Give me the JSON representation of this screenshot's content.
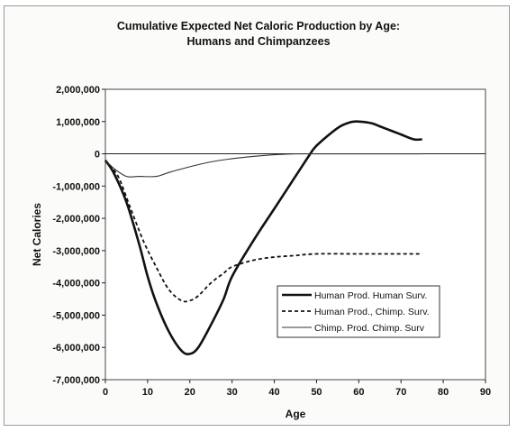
{
  "chart_data": {
    "type": "line",
    "title": "Cumulative Expected Net Caloric Production by Age:",
    "subtitle": "Humans and Chimpanzees",
    "xlabel": "Age",
    "ylabel": "Net Calories",
    "xlim": [
      0,
      90
    ],
    "ylim": [
      -7000000,
      2000000
    ],
    "x_ticks": [
      0,
      10,
      20,
      30,
      40,
      50,
      60,
      70,
      80,
      90
    ],
    "y_ticks": [
      -7000000,
      -6000000,
      -5000000,
      -4000000,
      -3000000,
      -2000000,
      -1000000,
      0,
      1000000,
      2000000
    ],
    "x_tick_labels": [
      "0",
      "10",
      "20",
      "30",
      "40",
      "50",
      "60",
      "70",
      "80",
      "90"
    ],
    "y_tick_labels": [
      "-7,000,000",
      "-6,000,000",
      "-5,000,000",
      "-4,000,000",
      "-3,000,000",
      "-2,000,000",
      "-1,000,000",
      "0",
      "1,000,000",
      "2,000,000"
    ],
    "legend_position": "lower-right",
    "grid": false,
    "series": [
      {
        "name": "Human Prod. Human Surv.",
        "style": "solid-thick",
        "color": "#111111",
        "x": [
          0,
          2,
          5,
          8,
          10,
          12,
          15,
          18,
          20,
          22,
          25,
          28,
          30,
          35,
          40,
          45,
          48,
          50,
          55,
          58,
          60,
          63,
          65,
          68,
          70,
          73,
          75
        ],
        "y": [
          -200000,
          -600000,
          -1500000,
          -2800000,
          -3800000,
          -4600000,
          -5500000,
          -6100000,
          -6200000,
          -6000000,
          -5300000,
          -4500000,
          -3800000,
          -2700000,
          -1700000,
          -700000,
          -100000,
          250000,
          800000,
          980000,
          1000000,
          950000,
          850000,
          700000,
          600000,
          450000,
          450000
        ]
      },
      {
        "name": "Human Prod., Chimp. Surv.",
        "style": "dashed",
        "color": "#111111",
        "x": [
          0,
          3,
          6,
          9,
          12,
          15,
          18,
          20,
          22,
          25,
          28,
          30,
          35,
          40,
          45,
          50,
          60,
          70,
          75
        ],
        "y": [
          -200000,
          -700000,
          -1700000,
          -2700000,
          -3500000,
          -4200000,
          -4550000,
          -4550000,
          -4400000,
          -4000000,
          -3700000,
          -3500000,
          -3300000,
          -3200000,
          -3150000,
          -3100000,
          -3100000,
          -3100000,
          -3100000
        ]
      },
      {
        "name": "Chimp. Prod. Chimp. Surv",
        "style": "solid-thin",
        "color": "#333333",
        "x": [
          0,
          2,
          5,
          8,
          12,
          15,
          20,
          25,
          30,
          35,
          40,
          45,
          50,
          60,
          70,
          75
        ],
        "y": [
          -200000,
          -450000,
          -700000,
          -700000,
          -700000,
          -580000,
          -400000,
          -250000,
          -150000,
          -80000,
          -30000,
          0,
          0,
          0,
          0,
          0
        ]
      }
    ]
  }
}
